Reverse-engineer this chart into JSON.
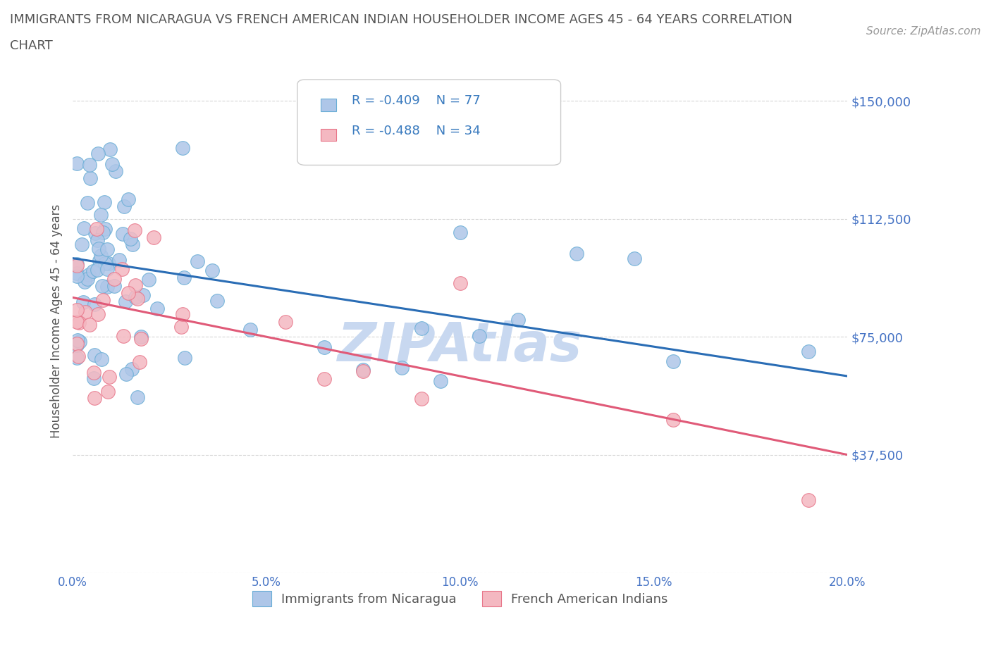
{
  "title_line1": "IMMIGRANTS FROM NICARAGUA VS FRENCH AMERICAN INDIAN HOUSEHOLDER INCOME AGES 45 - 64 YEARS CORRELATION",
  "title_line2": "CHART",
  "source": "Source: ZipAtlas.com",
  "ylabel": "Householder Income Ages 45 - 64 years",
  "xlim": [
    0.0,
    0.2
  ],
  "ylim": [
    0,
    160000
  ],
  "yticks": [
    0,
    37500,
    75000,
    112500,
    150000
  ],
  "ytick_labels": [
    "",
    "$37,500",
    "$75,000",
    "$112,500",
    "$150,000"
  ],
  "xticks": [
    0.0,
    0.05,
    0.1,
    0.15,
    0.2
  ],
  "xtick_labels": [
    "0.0%",
    "5.0%",
    "10.0%",
    "15.0%",
    "20.0%"
  ],
  "series1": {
    "name": "Immigrants from Nicaragua",
    "color": "#aec6e8",
    "border_color": "#6aaed6",
    "R": -0.409,
    "N": 77,
    "line_color": "#2a6db5",
    "line_y0": 100000,
    "line_y1": 62500
  },
  "series2": {
    "name": "French American Indians",
    "color": "#f4b8c1",
    "border_color": "#e8768a",
    "R": -0.488,
    "N": 34,
    "line_color": "#e05a78",
    "line_y0": 87500,
    "line_y1": 37500
  },
  "watermark": "ZIPAtlas",
  "legend_R_color": "#3a7bbf",
  "bg_color": "#ffffff",
  "grid_color": "#cccccc",
  "title_color": "#555555",
  "axis_label_color": "#555555",
  "tick_color": "#4472c4",
  "watermark_color": "#c8d8f0"
}
